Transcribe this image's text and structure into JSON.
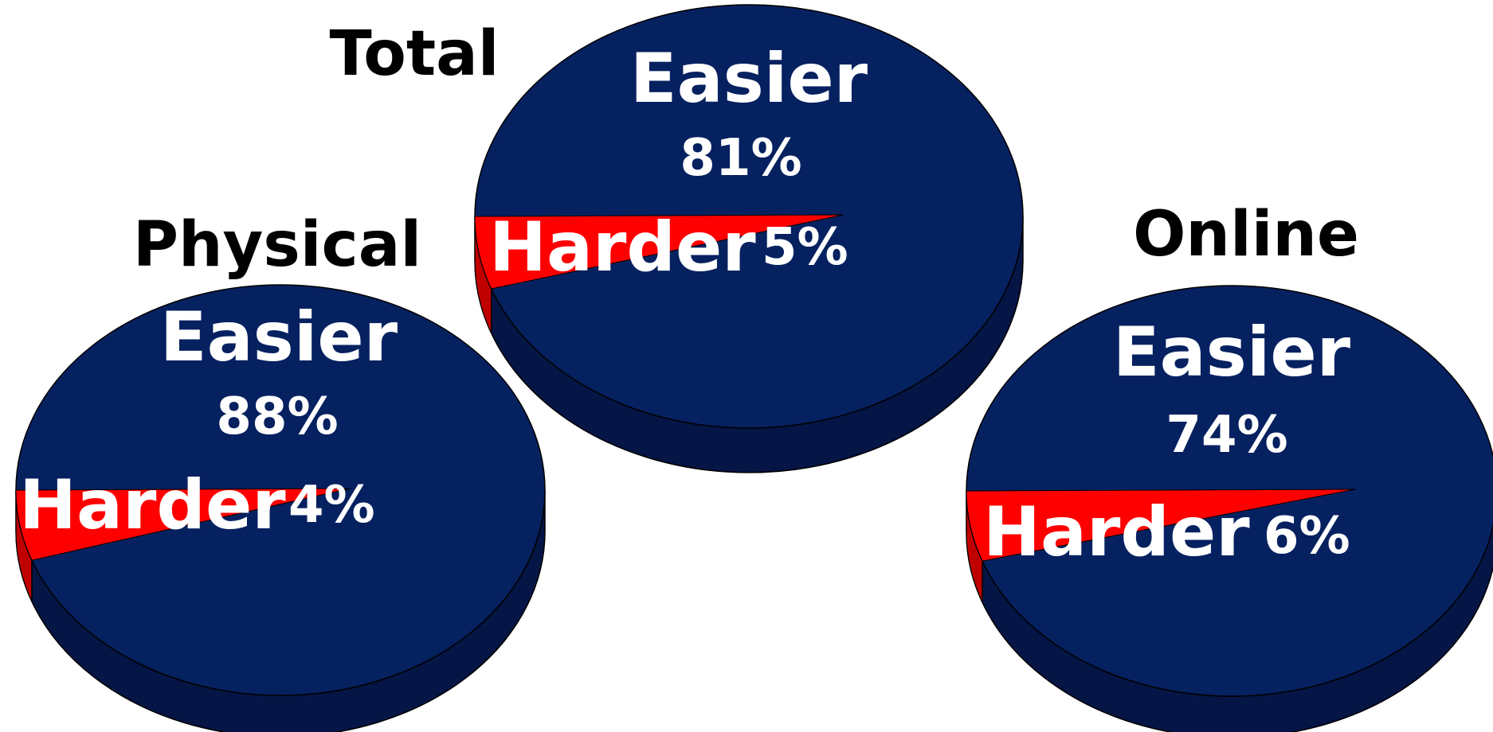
{
  "colors": {
    "easier": "#062160",
    "easier_side": "#051545",
    "harder": "#ff0000",
    "harder_side": "#c00000",
    "outline": "#000000"
  },
  "chart_data": [
    {
      "type": "pie",
      "title": "Total",
      "slices": [
        {
          "name": "Easier",
          "label": "Easier",
          "value": 81,
          "value_label": "81%"
        },
        {
          "name": "Harder",
          "label": "Harder",
          "value": 5,
          "value_label": "5%"
        }
      ]
    },
    {
      "type": "pie",
      "title": "Physical",
      "slices": [
        {
          "name": "Easier",
          "label": "Easier",
          "value": 88,
          "value_label": "88%"
        },
        {
          "name": "Harder",
          "label": "Harder",
          "value": 4,
          "value_label": "4%"
        }
      ]
    },
    {
      "type": "pie",
      "title": "Online",
      "slices": [
        {
          "name": "Easier",
          "label": "Easier",
          "value": 74,
          "value_label": "74%"
        },
        {
          "name": "Harder",
          "label": "Harder",
          "value": 6,
          "value_label": "6%"
        }
      ]
    }
  ]
}
